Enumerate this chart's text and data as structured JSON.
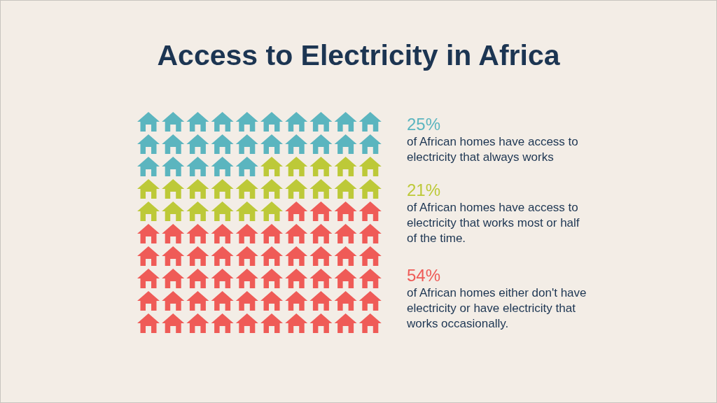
{
  "chart_data": {
    "type": "other",
    "title": "Access to Electricity in Africa",
    "categories": [
      "of African homes have access to electricity that always works",
      "of African homes have access to electricity that works most or half of the time.",
      "of African homes either don't have electricity or have electricity that works occasionally."
    ],
    "values": [
      25,
      21,
      54
    ],
    "value_labels": [
      "25%",
      "21%",
      "54%"
    ],
    "colors": [
      "#5bb5bf",
      "#bdc938",
      "#ef5b57"
    ]
  }
}
